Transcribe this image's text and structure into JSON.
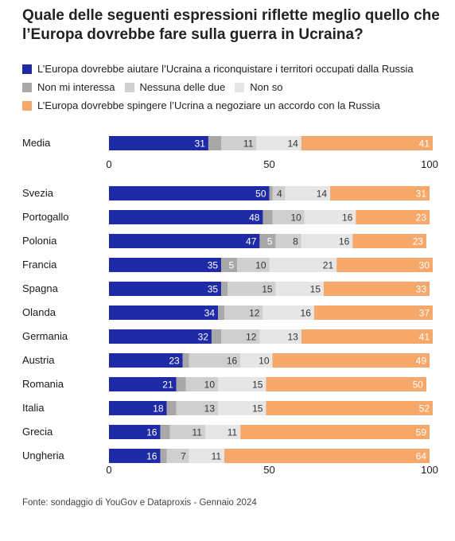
{
  "title": "Quale delle seguenti espressioni riflette meglio quello che l’Europa dovrebbe fare sulla guerra in Ucraina?",
  "legend": [
    {
      "label": "L’Europa dovrebbe aiutare l’Ucraina a riconquistare i territori occupati dalla Russia",
      "color": "#1e2aa6"
    },
    {
      "label": "Non mi interessa",
      "color": "#a8a8a8"
    },
    {
      "label": "Nessuna delle due",
      "color": "#cfcfcf"
    },
    {
      "label": "Non so",
      "color": "#e6e6e6"
    },
    {
      "label": "L’Europa dovrebbe spingere l’Ucrina a negoziare un accordo con la Russia",
      "color": "#f6a86a"
    }
  ],
  "source": "Fonte: sondaggio di YouGov e Dataproxis - Gennaio 2024",
  "chart_data": [
    {
      "type": "bar",
      "orientation": "horizontal-stacked",
      "categories": [
        "Media"
      ],
      "series": [
        {
          "name": "L’Europa dovrebbe aiutare l’Ucraina a riconquistare i territori occupati dalla Russia",
          "values": [
            31
          ],
          "labels": [
            "31"
          ]
        },
        {
          "name": "Non mi interessa",
          "values": [
            4
          ],
          "labels": [
            ""
          ]
        },
        {
          "name": "Nessuna delle due",
          "values": [
            11
          ],
          "labels": [
            "11"
          ]
        },
        {
          "name": "Non so",
          "values": [
            14
          ],
          "labels": [
            "14"
          ]
        },
        {
          "name": "L’Europa dovrebbe spingere l’Ucrina a negoziare un accordo con la Russia",
          "values": [
            41
          ],
          "labels": [
            "41"
          ]
        }
      ],
      "xlim": [
        0,
        100
      ],
      "xticks": [
        "0",
        "50",
        "100"
      ]
    },
    {
      "type": "bar",
      "orientation": "horizontal-stacked",
      "categories": [
        "Svezia",
        "Portogallo",
        "Polonia",
        "Francia",
        "Spagna",
        "Olanda",
        "Germania",
        "Austria",
        "Romania",
        "Italia",
        "Grecia",
        "Ungheria"
      ],
      "series": [
        {
          "name": "L’Europa dovrebbe aiutare l’Ucraina a riconquistare i territori occupati dalla Russia",
          "values": [
            50,
            48,
            47,
            35,
            35,
            34,
            32,
            23,
            21,
            18,
            16,
            16
          ],
          "labels": [
            "50",
            "48",
            "47",
            "35",
            "35",
            "34",
            "32",
            "23",
            "21",
            "18",
            "16",
            "16"
          ]
        },
        {
          "name": "Non mi interessa",
          "values": [
            1,
            3,
            5,
            5,
            2,
            2,
            3,
            2,
            3,
            3,
            3,
            2
          ],
          "labels": [
            "",
            "",
            "5",
            "5",
            "",
            "",
            "",
            "",
            "",
            "",
            "",
            ""
          ]
        },
        {
          "name": "Nessuna delle due",
          "values": [
            4,
            10,
            8,
            10,
            15,
            12,
            12,
            16,
            10,
            13,
            11,
            7
          ],
          "labels": [
            "4",
            "10",
            "8",
            "10",
            "15",
            "12",
            "12",
            "16",
            "10",
            "13",
            "11",
            "7"
          ]
        },
        {
          "name": "Non so",
          "values": [
            14,
            16,
            16,
            21,
            15,
            16,
            13,
            10,
            15,
            15,
            11,
            11
          ],
          "labels": [
            "14",
            "16",
            "16",
            "21",
            "15",
            "16",
            "13",
            "10",
            "15",
            "15",
            "11",
            "11"
          ]
        },
        {
          "name": "L’Europa dovrebbe spingere l’Ucrina a negoziare un accordo con la Russia",
          "values": [
            31,
            23,
            23,
            30,
            33,
            37,
            41,
            49,
            50,
            52,
            59,
            64
          ],
          "labels": [
            "31",
            "23",
            "23",
            "30",
            "33",
            "37",
            "41",
            "49",
            "50",
            "52",
            "59",
            "64"
          ]
        }
      ],
      "xlim": [
        0,
        100
      ],
      "xticks": [
        "0",
        "50",
        "100"
      ]
    }
  ]
}
